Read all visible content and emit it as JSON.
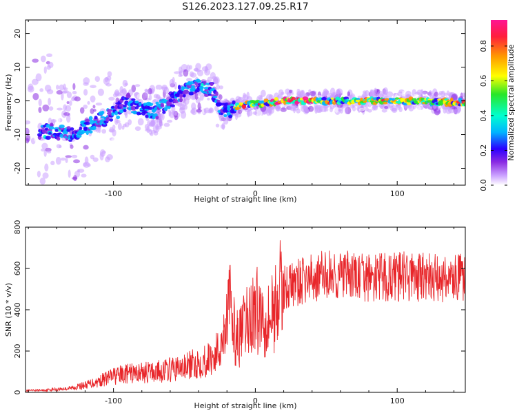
{
  "figure_title": "S126.2023.127.09.25.R17",
  "colors": {
    "snr_line": "#e8262a",
    "colormap": [
      "#ffffff",
      "#caa0ff",
      "#8a2be2",
      "#2a00ff",
      "#00b4ff",
      "#00ffd0",
      "#28e628",
      "#ffff00",
      "#ff9900",
      "#ff1e3c",
      "#ff1493"
    ]
  },
  "chart_data": [
    {
      "type": "heatmap",
      "title": "",
      "xlabel": "Height of straight line (km)",
      "ylabel": "Frequency (Hz)",
      "xlim": [
        -162,
        148
      ],
      "ylim": [
        -25,
        24
      ],
      "x_ticks": [
        -100,
        0,
        100
      ],
      "y_ticks": [
        -20,
        -10,
        0,
        10,
        20
      ],
      "grid": false,
      "colorbar": {
        "label": "Normalized spectral amplitude",
        "range": [
          0,
          0.95
        ],
        "ticks": [
          0.0,
          0.2,
          0.4,
          0.6,
          0.8
        ]
      },
      "ridge": {
        "x": [
          -145,
          -130,
          -115,
          -100,
          -90,
          -80,
          -70,
          -60,
          -50,
          -40,
          -30,
          -25,
          -20,
          -10,
          0,
          20,
          50,
          80,
          110,
          148
        ],
        "y": [
          -9,
          -10,
          -7,
          -4,
          0,
          -3,
          -3,
          0,
          3,
          4,
          3,
          -2,
          -3,
          -1,
          -1,
          0,
          0,
          0,
          0,
          -0.5
        ]
      }
    },
    {
      "type": "line",
      "title": "",
      "xlabel": "Height of straight line (km)",
      "ylabel": "SNR (10 * v/v)",
      "xlim": [
        -162,
        148
      ],
      "ylim": [
        0,
        800
      ],
      "x_ticks": [
        -100,
        0,
        100
      ],
      "y_ticks": [
        0,
        200,
        400,
        600,
        800
      ],
      "grid": false,
      "series": [
        {
          "x": [
            -162,
            -150,
            -140,
            -130,
            -120,
            -110,
            -100,
            -90,
            -80,
            -70,
            -60,
            -50,
            -40,
            -35,
            -30,
            -25,
            -22,
            -20,
            -18,
            -15,
            -12,
            -10,
            -5,
            0,
            5,
            10,
            15,
            20,
            25,
            30,
            40,
            50,
            60,
            70,
            80,
            90,
            100,
            110,
            120,
            130,
            140,
            148
          ],
          "values": [
            8,
            10,
            15,
            20,
            35,
            55,
            80,
            90,
            95,
            100,
            110,
            120,
            145,
            155,
            170,
            210,
            300,
            380,
            440,
            300,
            250,
            280,
            350,
            400,
            380,
            360,
            440,
            510,
            520,
            530,
            550,
            570,
            565,
            560,
            550,
            555,
            560,
            560,
            555,
            550,
            555,
            550
          ]
        }
      ]
    }
  ]
}
